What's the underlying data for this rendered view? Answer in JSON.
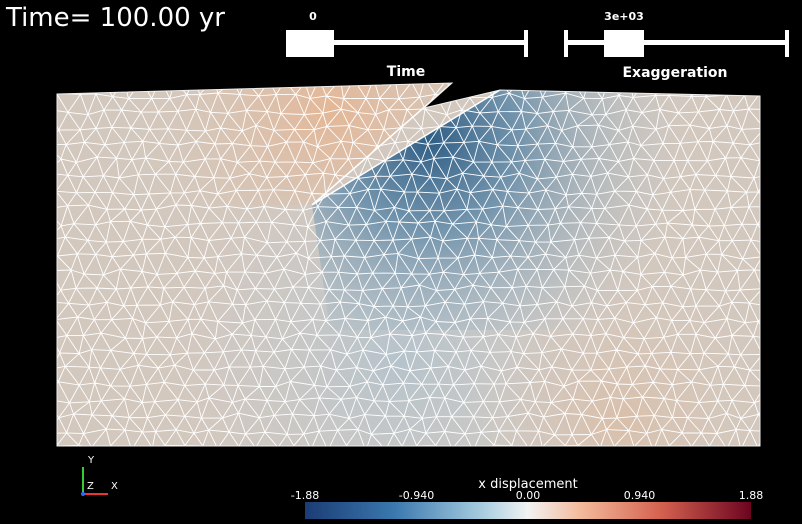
{
  "header": {
    "time_label": "Time= 100.00 yr"
  },
  "sliders": [
    {
      "value_text": "0",
      "label": "Time"
    },
    {
      "value_text": "3e+03",
      "label": "Exaggeration"
    }
  ],
  "axes_triad": {
    "y": "Y",
    "z": "Z",
    "x": "X"
  },
  "colorbar": {
    "title": "x displacement",
    "ticks": [
      "-1.88",
      "-0.940",
      "0.00",
      "0.940",
      "1.88"
    ]
  }
}
